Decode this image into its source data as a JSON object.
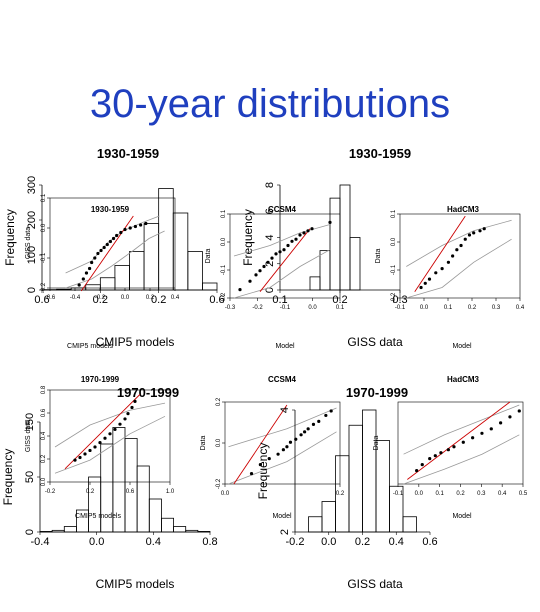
{
  "slide_title": "30-year distributions",
  "colors": {
    "title": "#1f3fbf",
    "fit_line": "#cc0000",
    "envelope": "#999999",
    "points": "#000000",
    "bars": "#000000"
  },
  "chart_data": [
    {
      "id": "hist_cmip5_1930",
      "type": "bar",
      "title": "1930-1959",
      "xlabel": "CMIP5 models",
      "ylabel": "Frequency",
      "xlim": [
        -0.6,
        0.6
      ],
      "ylim": [
        0,
        300
      ],
      "x_ticks": [
        "0.6",
        "0.2",
        "0.2",
        "0.6"
      ],
      "y_ticks": [
        "0",
        "100",
        "200",
        "300"
      ],
      "bin_edges": [
        -0.6,
        -0.5,
        -0.4,
        -0.3,
        -0.2,
        -0.1,
        0.0,
        0.1,
        0.2,
        0.3,
        0.4,
        0.5,
        0.6
      ],
      "values": [
        1,
        2,
        6,
        15,
        35,
        70,
        110,
        190,
        290,
        220,
        110,
        20
      ]
    },
    {
      "id": "qq_cmip5_1930",
      "type": "scatter",
      "title": "1930-1959",
      "xlabel": "CMIP5 models",
      "ylabel": "GISS data",
      "xlim": [
        -0.6,
        0.6
      ],
      "ylim": [
        -0.3,
        0.3
      ],
      "x_ticks": [
        "-0.6",
        "-0.4",
        "-0.2",
        "0.0",
        "0.2",
        "0.4"
      ],
      "y_ticks": [
        "-0.2",
        "-0.1",
        "0.0",
        "0.1"
      ],
      "points": [
        [
          -0.32,
          -0.28
        ],
        [
          -0.28,
          -0.24
        ],
        [
          -0.25,
          -0.2
        ],
        [
          -0.22,
          -0.17
        ],
        [
          -0.2,
          -0.13
        ],
        [
          -0.17,
          -0.1
        ],
        [
          -0.14,
          -0.07
        ],
        [
          -0.11,
          -0.05
        ],
        [
          -0.08,
          -0.03
        ],
        [
          -0.05,
          -0.01
        ],
        [
          -0.02,
          0.01
        ],
        [
          0.01,
          0.03
        ],
        [
          0.04,
          0.05
        ],
        [
          0.08,
          0.07
        ],
        [
          0.12,
          0.09
        ],
        [
          0.17,
          0.1
        ],
        [
          0.22,
          0.11
        ],
        [
          0.27,
          0.12
        ],
        [
          0.32,
          0.13
        ]
      ],
      "fit": [
        [
          -0.3,
          -0.32
        ],
        [
          0.2,
          0.18
        ]
      ],
      "upper": [
        [
          -0.45,
          -0.2
        ],
        [
          -0.2,
          -0.12
        ],
        [
          -0.05,
          0.0
        ],
        [
          0.1,
          0.08
        ],
        [
          0.3,
          0.14
        ],
        [
          0.45,
          0.18
        ]
      ],
      "lower": [
        [
          -0.45,
          -0.3
        ],
        [
          -0.2,
          -0.24
        ],
        [
          0.0,
          -0.15
        ],
        [
          0.2,
          -0.05
        ],
        [
          0.35,
          0.03
        ],
        [
          0.5,
          0.08
        ]
      ]
    },
    {
      "id": "hist_giss_1930",
      "type": "bar",
      "title": "1930-1959",
      "xlabel": "GISS data",
      "ylabel": "Frequency",
      "xlim": [
        -0.3,
        0.3
      ],
      "ylim": [
        0,
        8
      ],
      "x_ticks": [
        "0.1",
        "0.2",
        "0.3"
      ],
      "y_ticks": [
        "0",
        "2",
        "4",
        "6",
        "8"
      ],
      "bin_edges": [
        -0.15,
        -0.1,
        -0.05,
        0.0,
        0.05,
        0.1,
        0.15
      ],
      "values": [
        1,
        3,
        7,
        8,
        4,
        0
      ]
    },
    {
      "id": "qq_ccsm4_1930",
      "type": "scatter",
      "title": "CCSM4",
      "xlabel": "Model",
      "ylabel": "Data",
      "xlim": [
        -0.35,
        0.2
      ],
      "ylim": [
        -0.25,
        0.15
      ],
      "x_ticks": [
        "-0.3",
        "-0.2",
        "-0.1",
        "0.0",
        "0.1"
      ],
      "y_ticks": [
        "-0.2",
        "-0.1",
        "0.0",
        "0.1"
      ],
      "points": [
        [
          -0.3,
          -0.21
        ],
        [
          -0.25,
          -0.17
        ],
        [
          -0.22,
          -0.14
        ],
        [
          -0.2,
          -0.12
        ],
        [
          -0.18,
          -0.1
        ],
        [
          -0.16,
          -0.08
        ],
        [
          -0.14,
          -0.06
        ],
        [
          -0.12,
          -0.04
        ],
        [
          -0.1,
          -0.03
        ],
        [
          -0.08,
          -0.02
        ],
        [
          -0.06,
          0.0
        ],
        [
          -0.04,
          0.02
        ],
        [
          -0.02,
          0.03
        ],
        [
          0.0,
          0.05
        ],
        [
          0.02,
          0.06
        ],
        [
          0.04,
          0.07
        ],
        [
          0.06,
          0.08
        ],
        [
          0.15,
          0.11
        ]
      ],
      "fit": [
        [
          -0.2,
          -0.22
        ],
        [
          0.05,
          0.08
        ]
      ],
      "upper": [
        [
          -0.33,
          -0.05
        ],
        [
          -0.15,
          0.0
        ],
        [
          0.0,
          0.06
        ],
        [
          0.15,
          0.1
        ]
      ],
      "lower": [
        [
          -0.33,
          -0.25
        ],
        [
          -0.15,
          -0.2
        ],
        [
          0.0,
          -0.1
        ],
        [
          0.15,
          -0.02
        ]
      ]
    },
    {
      "id": "qq_hadcm3_1930",
      "type": "scatter",
      "title": "HadCM3",
      "xlabel": "Model",
      "ylabel": "Data",
      "xlim": [
        -0.15,
        0.42
      ],
      "ylim": [
        -0.25,
        0.15
      ],
      "x_ticks": [
        "-0.1",
        "0.0",
        "0.1",
        "0.2",
        "0.3",
        "0.4"
      ],
      "y_ticks": [
        "-0.2",
        "-0.1",
        "0.0",
        "0.1"
      ],
      "points": [
        [
          -0.05,
          -0.2
        ],
        [
          -0.03,
          -0.18
        ],
        [
          -0.01,
          -0.16
        ],
        [
          0.02,
          -0.13
        ],
        [
          0.05,
          -0.11
        ],
        [
          0.08,
          -0.08
        ],
        [
          0.1,
          -0.05
        ],
        [
          0.12,
          -0.02
        ],
        [
          0.14,
          0.0
        ],
        [
          0.16,
          0.03
        ],
        [
          0.18,
          0.05
        ],
        [
          0.2,
          0.06
        ],
        [
          0.23,
          0.07
        ],
        [
          0.25,
          0.08
        ]
      ],
      "fit": [
        [
          -0.08,
          -0.22
        ],
        [
          0.16,
          0.14
        ]
      ],
      "upper": [
        [
          -0.12,
          -0.1
        ],
        [
          0.05,
          0.0
        ],
        [
          0.2,
          0.07
        ],
        [
          0.38,
          0.12
        ]
      ],
      "lower": [
        [
          -0.12,
          -0.25
        ],
        [
          0.05,
          -0.2
        ],
        [
          0.2,
          -0.08
        ],
        [
          0.38,
          0.03
        ]
      ]
    },
    {
      "id": "hist_cmip5_1970",
      "type": "bar",
      "title": "1970-1999",
      "xlabel": "CMIP5 models",
      "ylabel": "Frequency",
      "xlim": [
        -0.4,
        1.0
      ],
      "ylim": [
        0,
        200
      ],
      "x_ticks": [
        "-0.4",
        "0.0",
        "0.4",
        "0.8"
      ],
      "y_ticks": [
        "0",
        "50",
        "150"
      ],
      "bin_edges": [
        -0.4,
        -0.3,
        -0.2,
        -0.1,
        0.0,
        0.1,
        0.2,
        0.3,
        0.4,
        0.5,
        0.6,
        0.7,
        0.8,
        0.9,
        1.0
      ],
      "values": [
        1,
        3,
        10,
        40,
        100,
        160,
        190,
        170,
        120,
        60,
        25,
        10,
        3,
        1
      ]
    },
    {
      "id": "qq_cmip5_1970",
      "type": "scatter",
      "title": "1970-1999",
      "xlabel": "CMIP5 models",
      "ylabel": "GISS data",
      "xlim": [
        -0.2,
        1.0
      ],
      "ylim": [
        -0.2,
        0.85
      ],
      "x_ticks": [
        "-0.2",
        "0.2",
        "0.6",
        "1.0"
      ],
      "y_ticks": [
        "0.0",
        "0.2",
        "0.4",
        "0.6",
        "0.8"
      ],
      "points": [
        [
          0.05,
          0.05
        ],
        [
          0.1,
          0.08
        ],
        [
          0.15,
          0.12
        ],
        [
          0.2,
          0.16
        ],
        [
          0.25,
          0.2
        ],
        [
          0.3,
          0.25
        ],
        [
          0.35,
          0.3
        ],
        [
          0.4,
          0.35
        ],
        [
          0.45,
          0.4
        ],
        [
          0.5,
          0.46
        ],
        [
          0.55,
          0.52
        ],
        [
          0.58,
          0.58
        ],
        [
          0.62,
          0.65
        ],
        [
          0.65,
          0.72
        ]
      ],
      "fit": [
        [
          -0.05,
          -0.05
        ],
        [
          0.7,
          0.8
        ]
      ],
      "upper": [
        [
          -0.15,
          0.2
        ],
        [
          0.2,
          0.45
        ],
        [
          0.6,
          0.62
        ],
        [
          0.95,
          0.7
        ]
      ],
      "lower": [
        [
          -0.15,
          -0.1
        ],
        [
          0.2,
          0.05
        ],
        [
          0.6,
          0.35
        ],
        [
          0.95,
          0.55
        ]
      ]
    },
    {
      "id": "qq_ccsm4_1970",
      "type": "scatter",
      "title": "CCSM4",
      "xlabel": "Model",
      "ylabel": "Data",
      "xlim": [
        -0.35,
        0.3
      ],
      "ylim": [
        -0.25,
        0.3
      ],
      "x_ticks": [
        "0.0",
        "0.2"
      ],
      "y_ticks": [
        "-0.2",
        "0.0",
        "0.2"
      ],
      "points": [
        [
          -0.2,
          -0.18
        ],
        [
          -0.15,
          -0.12
        ],
        [
          -0.1,
          -0.08
        ],
        [
          -0.05,
          -0.05
        ],
        [
          -0.02,
          -0.02
        ],
        [
          0.0,
          0.0
        ],
        [
          0.02,
          0.03
        ],
        [
          0.05,
          0.05
        ],
        [
          0.08,
          0.08
        ],
        [
          0.1,
          0.1
        ],
        [
          0.12,
          0.12
        ],
        [
          0.15,
          0.15
        ],
        [
          0.18,
          0.17
        ],
        [
          0.22,
          0.21
        ],
        [
          0.25,
          0.24
        ]
      ],
      "fit": [
        [
          -0.3,
          -0.25
        ],
        [
          0.0,
          0.28
        ]
      ],
      "upper": [
        [
          -0.33,
          0.0
        ],
        [
          0.0,
          0.12
        ],
        [
          0.28,
          0.26
        ]
      ],
      "lower": [
        [
          -0.33,
          -0.25
        ],
        [
          0.0,
          -0.1
        ],
        [
          0.28,
          0.1
        ]
      ]
    },
    {
      "id": "hist_giss_1970",
      "type": "bar",
      "title": "1970-1999",
      "xlabel": "GISS data",
      "ylabel": "Frequency",
      "xlim": [
        -0.3,
        0.7
      ],
      "ylim": [
        0,
        8
      ],
      "x_ticks": [
        "-0.2",
        "0.0",
        "0.2",
        "0.4",
        "0.6"
      ],
      "y_ticks": [
        "2",
        "4"
      ],
      "bin_edges": [
        -0.2,
        -0.1,
        0.0,
        0.1,
        0.2,
        0.3,
        0.4,
        0.5,
        0.6
      ],
      "values": [
        1,
        2,
        5,
        7,
        8,
        6,
        3,
        1
      ]
    },
    {
      "id": "qq_hadcm3_1970",
      "type": "scatter",
      "title": "HadCM3",
      "xlabel": "Model",
      "ylabel": "Data",
      "xlim": [
        -0.15,
        0.52
      ],
      "ylim": [
        -0.25,
        0.3
      ],
      "x_ticks": [
        "-0.1",
        "0.0",
        "0.1",
        "0.2",
        "0.3",
        "0.4",
        "0.5"
      ],
      "y_ticks": [],
      "points": [
        [
          -0.05,
          -0.16
        ],
        [
          -0.02,
          -0.12
        ],
        [
          0.02,
          -0.08
        ],
        [
          0.05,
          -0.06
        ],
        [
          0.08,
          -0.04
        ],
        [
          0.12,
          -0.02
        ],
        [
          0.15,
          0.0
        ],
        [
          0.2,
          0.03
        ],
        [
          0.25,
          0.06
        ],
        [
          0.3,
          0.09
        ],
        [
          0.35,
          0.12
        ],
        [
          0.4,
          0.16
        ],
        [
          0.45,
          0.2
        ],
        [
          0.5,
          0.24
        ]
      ],
      "fit": [
        [
          -0.1,
          -0.22
        ],
        [
          0.45,
          0.3
        ]
      ],
      "upper": [
        [
          -0.12,
          -0.05
        ],
        [
          0.1,
          0.08
        ],
        [
          0.3,
          0.18
        ],
        [
          0.5,
          0.28
        ]
      ],
      "lower": [
        [
          -0.12,
          -0.25
        ],
        [
          0.1,
          -0.15
        ],
        [
          0.3,
          -0.05
        ],
        [
          0.5,
          0.08
        ]
      ]
    }
  ]
}
